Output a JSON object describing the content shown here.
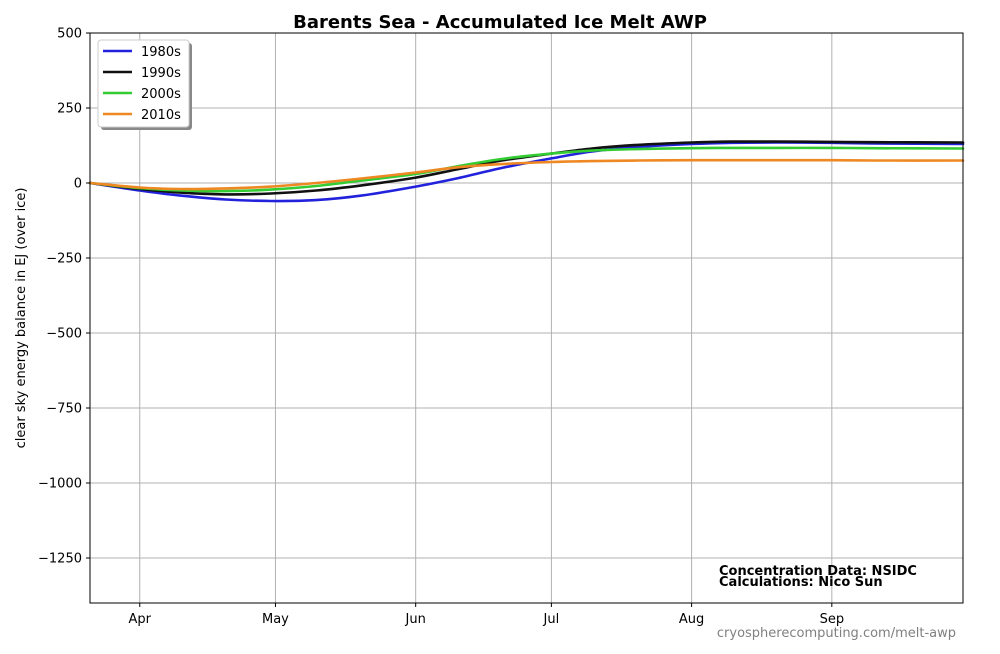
{
  "chart_data": {
    "type": "line",
    "title": "Barents Sea - Accumulated Ice Melt AWP",
    "xlabel": "",
    "ylabel": "clear sky energy balance in  EJ (over ice)",
    "ylim": [
      -1400,
      500
    ],
    "yticks": [
      500,
      250,
      0,
      -250,
      -500,
      -750,
      -1000,
      -1250
    ],
    "ytick_labels": [
      "500",
      "250",
      "0",
      "−250",
      "−500",
      "−750",
      "−1000",
      "−1250"
    ],
    "xlim": [
      "2000-03-21",
      "2000-09-30"
    ],
    "xticks": [
      {
        "date": "2000-04-01",
        "label": "Apr"
      },
      {
        "date": "2000-05-01",
        "label": "May"
      },
      {
        "date": "2000-06-01",
        "label": "Jun"
      },
      {
        "date": "2000-07-01",
        "label": "Jul"
      },
      {
        "date": "2000-08-01",
        "label": "Aug"
      },
      {
        "date": "2000-09-01",
        "label": "Sep"
      }
    ],
    "grid": true,
    "legend_position": "top-left",
    "series": [
      {
        "name": "1980s",
        "color": "#2222dd",
        "x": [
          "2000-03-21",
          "2000-04-01",
          "2000-04-10",
          "2000-04-20",
          "2000-04-30",
          "2000-05-10",
          "2000-05-20",
          "2000-06-01",
          "2000-06-10",
          "2000-06-20",
          "2000-07-01",
          "2000-07-10",
          "2000-07-20",
          "2000-08-01",
          "2000-08-10",
          "2000-08-20",
          "2000-09-01",
          "2000-09-10",
          "2000-09-30"
        ],
        "y": [
          0,
          -25,
          -42,
          -55,
          -60,
          -57,
          -42,
          -12,
          15,
          50,
          82,
          105,
          120,
          130,
          134,
          135,
          134,
          132,
          130
        ]
      },
      {
        "name": "1990s",
        "color": "#111111",
        "x": [
          "2000-03-21",
          "2000-04-01",
          "2000-04-10",
          "2000-04-20",
          "2000-04-30",
          "2000-05-10",
          "2000-05-20",
          "2000-06-01",
          "2000-06-10",
          "2000-06-20",
          "2000-07-01",
          "2000-07-10",
          "2000-07-20",
          "2000-08-01",
          "2000-08-10",
          "2000-08-20",
          "2000-09-01",
          "2000-09-10",
          "2000-09-30"
        ],
        "y": [
          0,
          -20,
          -32,
          -38,
          -35,
          -25,
          -8,
          18,
          45,
          75,
          98,
          115,
          127,
          135,
          138,
          138,
          137,
          136,
          135
        ]
      },
      {
        "name": "2000s",
        "color": "#33cc33",
        "x": [
          "2000-03-21",
          "2000-04-01",
          "2000-04-10",
          "2000-04-20",
          "2000-04-30",
          "2000-05-10",
          "2000-05-20",
          "2000-06-01",
          "2000-06-10",
          "2000-06-20",
          "2000-07-01",
          "2000-07-10",
          "2000-07-20",
          "2000-08-01",
          "2000-08-10",
          "2000-08-20",
          "2000-09-01",
          "2000-09-10",
          "2000-09-30"
        ],
        "y": [
          0,
          -17,
          -25,
          -27,
          -22,
          -10,
          8,
          30,
          55,
          80,
          98,
          108,
          113,
          116,
          117,
          117,
          117,
          116,
          115
        ]
      },
      {
        "name": "2010s",
        "color": "#ee8822",
        "x": [
          "2000-03-21",
          "2000-04-01",
          "2000-04-10",
          "2000-04-20",
          "2000-04-30",
          "2000-05-10",
          "2000-05-20",
          "2000-06-01",
          "2000-06-10",
          "2000-06-20",
          "2000-07-01",
          "2000-07-10",
          "2000-07-20",
          "2000-08-01",
          "2000-08-10",
          "2000-08-20",
          "2000-09-01",
          "2000-09-10",
          "2000-09-30"
        ],
        "y": [
          0,
          -15,
          -20,
          -18,
          -12,
          0,
          15,
          35,
          52,
          63,
          70,
          73,
          75,
          76,
          76,
          76,
          76,
          75,
          75
        ]
      }
    ],
    "annotations": [
      "Concentration Data: NSIDC",
      "Calculations: Nico Sun"
    ],
    "source": "cryospherecomputing.com/melt-awp"
  }
}
